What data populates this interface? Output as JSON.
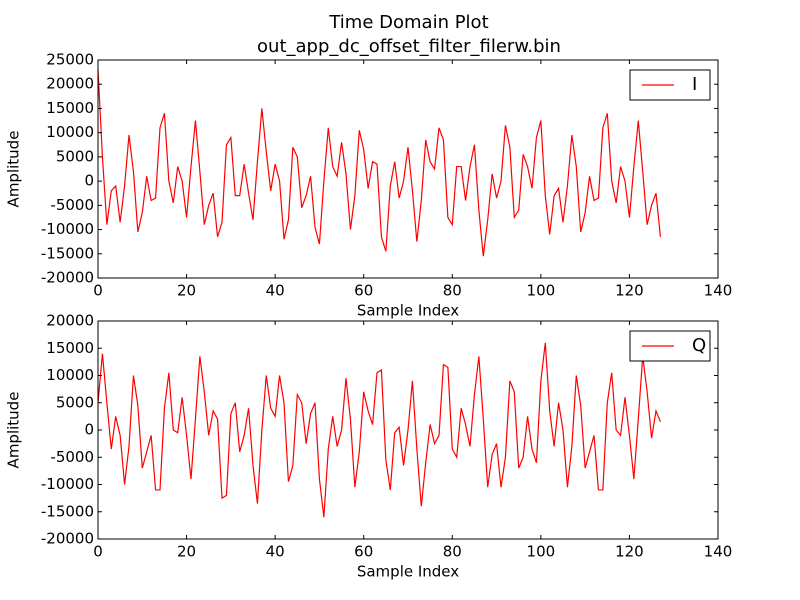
{
  "chart_data": [
    {
      "type": "line",
      "title": "Time Domain Plot",
      "subtitle": "out_app_dc_offset_filter_filerw.bin",
      "xlabel": "Sample Index",
      "ylabel": "Amplitude",
      "x": [
        0,
        1,
        2,
        3,
        4,
        5,
        6,
        7,
        8,
        9,
        10,
        11,
        12,
        13,
        14,
        15,
        16,
        17,
        18,
        19,
        20,
        21,
        22,
        23,
        24,
        25,
        26,
        27,
        28,
        29,
        30,
        31,
        32,
        33,
        34,
        35,
        36,
        37,
        38,
        39,
        40,
        41,
        42,
        43,
        44,
        45,
        46,
        47,
        48,
        49,
        50,
        51,
        52,
        53,
        54,
        55,
        56,
        57,
        58,
        59,
        60,
        61,
        62,
        63,
        64,
        65,
        66,
        67,
        68,
        69,
        70,
        71,
        72,
        73,
        74,
        75,
        76,
        77,
        78,
        79,
        80,
        81,
        82,
        83,
        84,
        85,
        86,
        87,
        88,
        89,
        90,
        91,
        92,
        93,
        94,
        95,
        96,
        97,
        98,
        99,
        100,
        101,
        102,
        103,
        104,
        105,
        106,
        107,
        108,
        109,
        110,
        111,
        112,
        113,
        114,
        115,
        116,
        117,
        118,
        119,
        120,
        121,
        122,
        123,
        124,
        125,
        126,
        127
      ],
      "series": [
        {
          "name": "I",
          "color": "#ff0000",
          "values": [
            23000,
            5000,
            -9000,
            -2000,
            -1000,
            -8500,
            -1000,
            9500,
            2000,
            -10500,
            -6500,
            1000,
            -4000,
            -3500,
            11000,
            14000,
            0,
            -4500,
            3000,
            0,
            -7500,
            3000,
            12500,
            2000,
            -9000,
            -5000,
            -2500,
            -11500,
            -8500,
            7500,
            9000,
            -3000,
            -3000,
            3500,
            -2500,
            -8000,
            4000,
            15000,
            6000,
            -2000,
            3500,
            0,
            -12000,
            -8000,
            7000,
            5000,
            -5500,
            -3000,
            1000,
            -9500,
            -13000,
            0,
            11000,
            3000,
            1000,
            8000,
            1500,
            -10000,
            -3000,
            10500,
            6500,
            -1500,
            4000,
            3500,
            -11500,
            -14500,
            -1000,
            4000,
            -3500,
            0,
            7000,
            -2000,
            -12500,
            -4000,
            8500,
            4000,
            2500,
            11000,
            8500,
            -7500,
            -9000,
            3000,
            3000,
            -4000,
            3000,
            7500,
            -6000,
            -15500,
            -8000,
            1500,
            -3500,
            0,
            11500,
            7000,
            -7500,
            -6000,
            5500,
            3000,
            -1500,
            9000,
            12500,
            -3000,
            -11000,
            -3000,
            -1500,
            -8500,
            -1000,
            9500,
            3000,
            -10500,
            -6500,
            1000,
            -4000,
            -3500,
            11000,
            14000,
            0,
            -4500,
            3000,
            0,
            -7500,
            3000,
            12500,
            2000,
            -9000,
            -5000,
            -2500,
            -11500
          ]
        }
      ],
      "xlim": [
        0,
        140
      ],
      "xticks": [
        0,
        20,
        40,
        60,
        80,
        100,
        120,
        140
      ],
      "ylim": [
        -20000,
        25000
      ],
      "yticks": [
        -20000,
        -15000,
        -10000,
        -5000,
        0,
        5000,
        10000,
        15000,
        20000,
        25000
      ],
      "legend": "upper right"
    },
    {
      "type": "line",
      "xlabel": "Sample Index",
      "ylabel": "Amplitude",
      "x": [
        0,
        1,
        2,
        3,
        4,
        5,
        6,
        7,
        8,
        9,
        10,
        11,
        12,
        13,
        14,
        15,
        16,
        17,
        18,
        19,
        20,
        21,
        22,
        23,
        24,
        25,
        26,
        27,
        28,
        29,
        30,
        31,
        32,
        33,
        34,
        35,
        36,
        37,
        38,
        39,
        40,
        41,
        42,
        43,
        44,
        45,
        46,
        47,
        48,
        49,
        50,
        51,
        52,
        53,
        54,
        55,
        56,
        57,
        58,
        59,
        60,
        61,
        62,
        63,
        64,
        65,
        66,
        67,
        68,
        69,
        70,
        71,
        72,
        73,
        74,
        75,
        76,
        77,
        78,
        79,
        80,
        81,
        82,
        83,
        84,
        85,
        86,
        87,
        88,
        89,
        90,
        91,
        92,
        93,
        94,
        95,
        96,
        97,
        98,
        99,
        100,
        101,
        102,
        103,
        104,
        105,
        106,
        107,
        108,
        109,
        110,
        111,
        112,
        113,
        114,
        115,
        116,
        117,
        118,
        119,
        120,
        121,
        122,
        123,
        124,
        125,
        126,
        127
      ],
      "series": [
        {
          "name": "Q",
          "color": "#ff0000",
          "values": [
            5000,
            14000,
            5000,
            -3500,
            2500,
            -1000,
            -10000,
            -3000,
            10000,
            4500,
            -7000,
            -4000,
            -1000,
            -11000,
            -11000,
            4000,
            10500,
            0,
            -500,
            6000,
            -1000,
            -9000,
            2000,
            13500,
            7000,
            -1000,
            3500,
            2000,
            -12500,
            -12000,
            3000,
            5000,
            -4000,
            -1000,
            4000,
            -6500,
            -13500,
            0,
            10000,
            4000,
            2500,
            10000,
            5000,
            -9500,
            -6500,
            6500,
            5000,
            -2500,
            3000,
            5000,
            -9000,
            -16000,
            -3500,
            2500,
            -3000,
            0,
            9500,
            2000,
            -10500,
            -4000,
            7000,
            3500,
            1000,
            10500,
            11000,
            -5500,
            -11000,
            -500,
            500,
            -6500,
            0,
            9000,
            -3500,
            -14000,
            -6000,
            1000,
            -2500,
            -1000,
            12000,
            11500,
            -3500,
            -5000,
            4000,
            1000,
            -3000,
            6500,
            13500,
            2000,
            -10500,
            -4500,
            -2500,
            -10500,
            -5000,
            9000,
            7000,
            -7000,
            -5000,
            2500,
            -3500,
            -6000,
            9000,
            16000,
            3500,
            -3000,
            5000,
            0,
            -10500,
            -3000,
            10000,
            4500,
            -7000,
            -4000,
            -1000,
            -11000,
            -11000,
            5000,
            10500,
            0,
            -1000,
            6000,
            -1000,
            -9000,
            2000,
            13500,
            7000,
            -1500,
            3500,
            1500
          ]
        }
      ],
      "xlim": [
        0,
        140
      ],
      "xticks": [
        0,
        20,
        40,
        60,
        80,
        100,
        120,
        140
      ],
      "ylim": [
        -20000,
        20000
      ],
      "yticks": [
        -20000,
        -15000,
        -10000,
        -5000,
        0,
        5000,
        10000,
        15000,
        20000
      ],
      "legend": "upper right"
    }
  ]
}
